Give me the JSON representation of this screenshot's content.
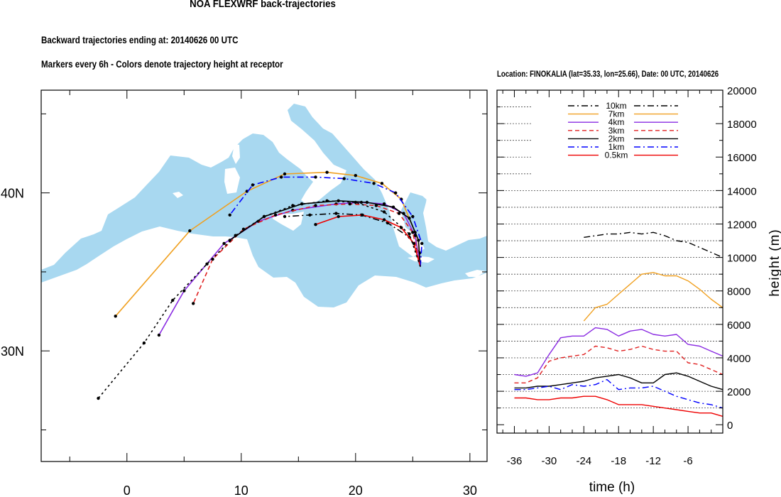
{
  "header": {
    "title": "NOA FLEXWRF back-trajectories",
    "subtitle_1": "Backward trajectories ending at: 20140626  00 UTC",
    "subtitle_2": "Markers every 6h - Colors denote trajectory height at receptor"
  },
  "chart_data": [
    {
      "type": "line",
      "chart": "map",
      "x_ticks": [
        "0",
        "10",
        "20",
        "30"
      ],
      "y_ticks": [
        "30N",
        "40N"
      ],
      "xlim": [
        -7.5,
        31.5
      ],
      "ylim": [
        23,
        46.5
      ],
      "colors": {
        "sea": "#a8d8f0",
        "land": "#ffffff"
      },
      "receptor": {
        "lon": 25.66,
        "lat": 35.33
      },
      "series": [
        {
          "name": "10km",
          "color": "#000000",
          "dash": "dashdot",
          "x": [
            25.66,
            25.6,
            24.7,
            22.8,
            20.5,
            18.3,
            16.0,
            13.8
          ],
          "y": [
            35.33,
            36.2,
            37.2,
            38.1,
            38.6,
            38.7,
            38.6,
            38.5
          ]
        },
        {
          "name": "7km",
          "color": "#f0a020",
          "dash": "solid",
          "x": [
            25.66,
            25.2,
            24.0,
            22.3,
            20.0,
            17.5,
            13.8,
            10.5,
            5.5,
            -1.0
          ],
          "y": [
            35.33,
            37.5,
            39.6,
            40.6,
            41.1,
            41.3,
            41.2,
            40.1,
            37.6,
            32.2
          ]
        },
        {
          "name": "4km",
          "color": "#8a2be2",
          "dash": "solid",
          "x": [
            25.66,
            25.2,
            24.2,
            22.5,
            20.5,
            18.3,
            14.5,
            11.5,
            8.5,
            5.0,
            2.8
          ],
          "y": [
            35.33,
            37.3,
            38.7,
            39.3,
            39.4,
            39.3,
            38.9,
            38.2,
            36.8,
            33.8,
            31.0
          ]
        },
        {
          "name": "3km",
          "color": "#e02020",
          "dash": "dash",
          "x": [
            25.66,
            25.0,
            23.8,
            21.8,
            19.5,
            16.5,
            13.0,
            10.2,
            7.5,
            5.8
          ],
          "y": [
            35.33,
            37.5,
            38.7,
            39.2,
            39.3,
            39.2,
            38.6,
            37.7,
            35.8,
            33.0
          ]
        },
        {
          "name": "2km",
          "color": "#000000",
          "dash": "solid",
          "x": [
            25.66,
            25.5,
            24.7,
            23.3,
            21.0,
            18.5,
            15.3,
            12.0,
            9.0
          ],
          "y": [
            35.33,
            37.0,
            38.4,
            39.1,
            39.4,
            39.5,
            39.3,
            38.5,
            37.0
          ]
        },
        {
          "name": "1km",
          "color": "#0000ff",
          "dash": "dashdot",
          "x": [
            25.66,
            25.8,
            25.0,
            23.5,
            21.6,
            19.0,
            16.5,
            13.5,
            11.0,
            9.0
          ],
          "y": [
            35.33,
            36.8,
            38.5,
            40.0,
            40.6,
            40.9,
            41.0,
            41.0,
            40.5,
            38.6
          ]
        },
        {
          "name": "0.5km",
          "color": "#ee0000",
          "dash": "solid",
          "x": [
            25.66,
            25.1,
            24.0,
            22.5,
            20.6,
            18.5,
            16.5
          ],
          "y": [
            35.33,
            36.8,
            37.8,
            38.3,
            38.6,
            38.5,
            38.0
          ]
        },
        {
          "name": "",
          "color": "#000000",
          "dash": "dot",
          "x": [
            25.66,
            24.7,
            22.5,
            20.0,
            17.5,
            14.5,
            12.0,
            9.5,
            7.0,
            4.0,
            1.5,
            -2.5
          ],
          "y": [
            35.33,
            37.4,
            38.8,
            39.4,
            39.5,
            39.2,
            38.5,
            37.3,
            35.5,
            33.2,
            30.5,
            27.0
          ]
        }
      ]
    },
    {
      "type": "line",
      "chart": "height-profile",
      "location": "Location: FINOKALIA (lat=35.33,  lon=25.66), Date: 00 UTC, 20140626",
      "xlabel": "time (h)",
      "ylabel": "height (m)",
      "xlim": [
        -39,
        0
      ],
      "ylim": [
        -500,
        20000
      ],
      "x_ticks": [
        "-36",
        "-30",
        "-24",
        "-18",
        "-12",
        "-6"
      ],
      "y_ticks": [
        "0",
        "2000",
        "4000",
        "6000",
        "8000",
        "10000",
        "12000",
        "14000",
        "16000",
        "18000",
        "20000"
      ],
      "legend_position": "top-center",
      "series": [
        {
          "name": "10km",
          "color": "#000000",
          "dash": "dashdot",
          "x": [
            -24,
            -22,
            -20,
            -18,
            -16,
            -14,
            -12,
            -10,
            -8,
            -6,
            -4,
            -2,
            0
          ],
          "y": [
            11200,
            11300,
            11400,
            11400,
            11500,
            11400,
            11500,
            11300,
            11000,
            10900,
            10600,
            10300,
            10000
          ]
        },
        {
          "name": "7km",
          "color": "#f0a020",
          "dash": "solid",
          "x": [
            -24,
            -22,
            -20,
            -18,
            -16,
            -14,
            -12,
            -10,
            -8,
            -6,
            -4,
            -2,
            0
          ],
          "y": [
            6200,
            7000,
            7200,
            7800,
            8400,
            9000,
            9100,
            8900,
            8900,
            8600,
            8100,
            7500,
            7000
          ]
        },
        {
          "name": "4km",
          "color": "#8a2be2",
          "dash": "solid",
          "x": [
            -36,
            -34,
            -32,
            -30,
            -28,
            -26,
            -24,
            -22,
            -20,
            -18,
            -16,
            -14,
            -12,
            -10,
            -8,
            -6,
            -4,
            -2,
            0
          ],
          "y": [
            3000,
            2900,
            3100,
            4200,
            5200,
            5300,
            5300,
            5800,
            5700,
            5300,
            5600,
            5700,
            5400,
            5300,
            5400,
            4800,
            4700,
            4400,
            4100
          ]
        },
        {
          "name": "3km",
          "color": "#e02020",
          "dash": "dash",
          "x": [
            -36,
            -34,
            -32,
            -30,
            -28,
            -26,
            -24,
            -22,
            -20,
            -18,
            -16,
            -14,
            -12,
            -10,
            -8,
            -6,
            -4,
            -2,
            0
          ],
          "y": [
            2500,
            2500,
            2800,
            3800,
            4000,
            4100,
            4200,
            4700,
            4600,
            4400,
            4500,
            4700,
            4500,
            4400,
            4400,
            3700,
            3600,
            3300,
            3000
          ]
        },
        {
          "name": "2km",
          "color": "#000000",
          "dash": "solid",
          "x": [
            -36,
            -34,
            -32,
            -30,
            -28,
            -26,
            -24,
            -22,
            -20,
            -18,
            -16,
            -14,
            -12,
            -10,
            -8,
            -6,
            -4,
            -2,
            0
          ],
          "y": [
            2200,
            2200,
            2300,
            2300,
            2400,
            2500,
            2600,
            2800,
            2900,
            3000,
            2800,
            2500,
            2500,
            3000,
            3100,
            2900,
            2600,
            2300,
            2100
          ]
        },
        {
          "name": "1km",
          "color": "#0000ff",
          "dash": "dashdot",
          "x": [
            -36,
            -34,
            -32,
            -30,
            -28,
            -26,
            -24,
            -22,
            -20,
            -18,
            -16,
            -14,
            -12,
            -10,
            -8,
            -6,
            -4,
            -2,
            0
          ],
          "y": [
            2100,
            2100,
            2200,
            2300,
            2100,
            2400,
            2300,
            2400,
            2700,
            2100,
            2200,
            2200,
            2300,
            2000,
            1700,
            1500,
            1300,
            1200,
            1000
          ]
        },
        {
          "name": "0.5km",
          "color": "#ee0000",
          "dash": "solid",
          "x": [
            -36,
            -34,
            -32,
            -30,
            -28,
            -26,
            -24,
            -22,
            -20,
            -18,
            -16,
            -14,
            -12,
            -10,
            -8,
            -6,
            -4,
            -2,
            0
          ],
          "y": [
            1600,
            1600,
            1500,
            1500,
            1600,
            1600,
            1700,
            1700,
            1500,
            1200,
            1200,
            1200,
            1100,
            1000,
            900,
            800,
            700,
            700,
            500
          ]
        }
      ]
    }
  ]
}
